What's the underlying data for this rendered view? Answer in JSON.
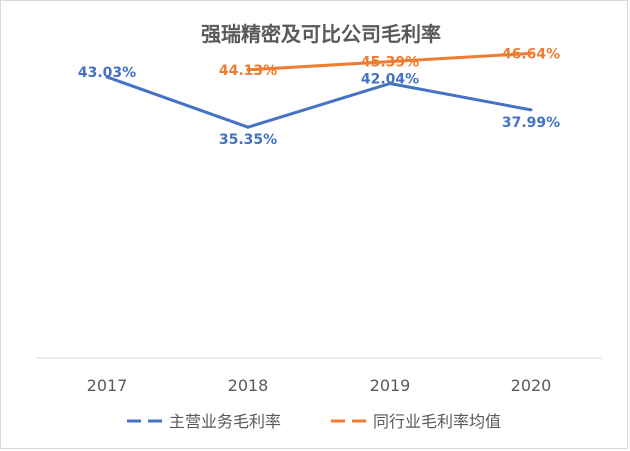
{
  "chart_data": {
    "type": "line",
    "title": "强瑞精密及可比公司毛利率",
    "xlabel": "",
    "ylabel": "",
    "categories": [
      "2017",
      "2018",
      "2019",
      "2020"
    ],
    "ylim": [
      0,
      50
    ],
    "grid": false,
    "legend_position": "bottom",
    "series": [
      {
        "name": "主营业务毛利率",
        "color": "#4472C4",
        "values": [
          43.03,
          35.35,
          42.04,
          37.99
        ],
        "labels": [
          "43.03%",
          "35.35%",
          "42.04%",
          "37.99%"
        ]
      },
      {
        "name": "同行业毛利率均值",
        "color": "#ED7D31",
        "values": [
          null,
          44.13,
          45.39,
          46.64
        ],
        "labels": [
          "",
          "44.13%",
          "45.39%",
          "46.64%"
        ]
      }
    ]
  }
}
